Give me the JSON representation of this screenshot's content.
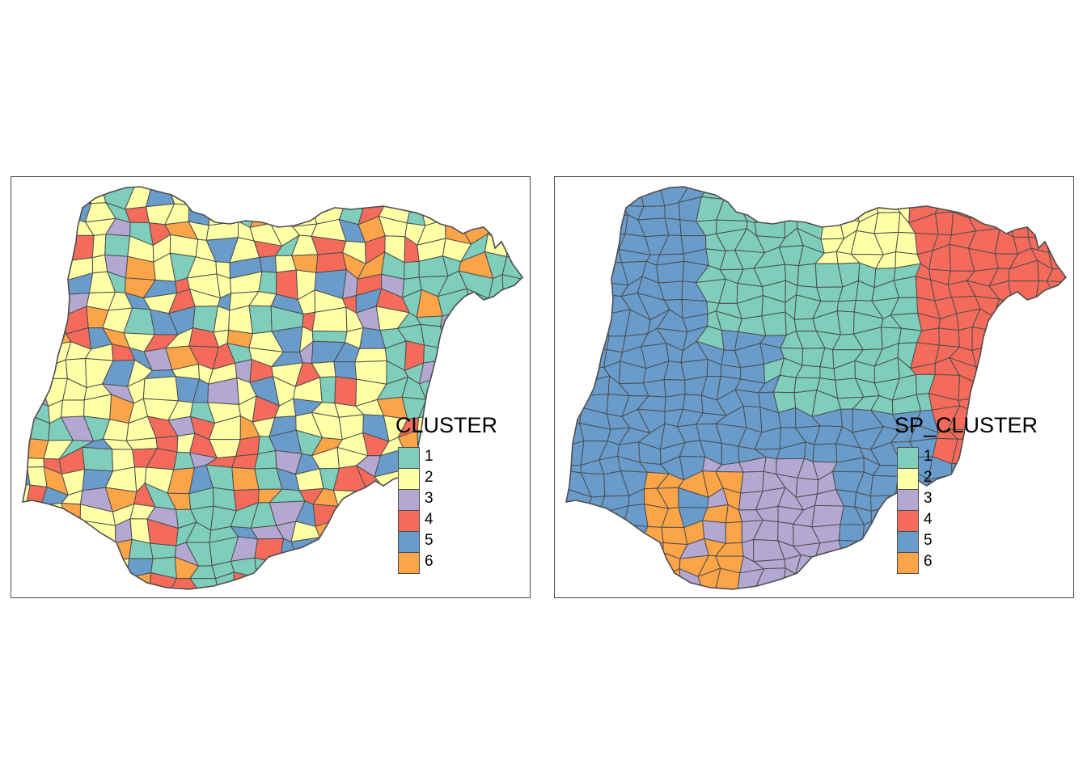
{
  "colors": {
    "1": "#7fcdbb",
    "2": "#ffffa6",
    "3": "#b3a8d1",
    "4": "#f46b5c",
    "5": "#6a9ccb",
    "6": "#fca448",
    "border": "#4d4d4d",
    "frame": "#4d4d4d"
  },
  "maps": [
    {
      "legend_title": "CLUSTER",
      "classes": [
        "1",
        "2",
        "3",
        "4",
        "5",
        "6"
      ]
    },
    {
      "legend_title": "SP_CLUSTER",
      "classes": [
        "1",
        "2",
        "3",
        "4",
        "5",
        "6"
      ]
    }
  ]
}
